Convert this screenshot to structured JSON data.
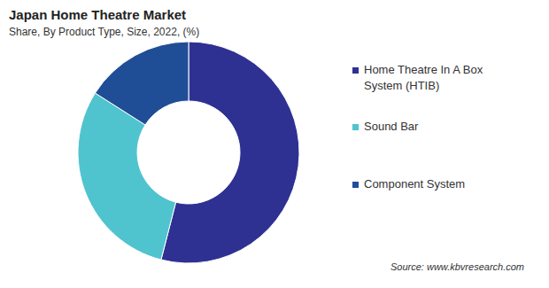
{
  "chart_data": {
    "type": "pie",
    "title": "Japan Home Theatre Market",
    "subtitle": "Share, By Product Type, Size, 2022, (%)",
    "categories": [
      "Home Theatre In A Box System (HTIB)",
      "Sound Bar",
      "Component System"
    ],
    "values": [
      54,
      30,
      16
    ],
    "colors": [
      "#2e3192",
      "#4fc4cf",
      "#1f4e96"
    ],
    "legend": "right",
    "annotation": "Source: www.kbvresearch.com"
  }
}
